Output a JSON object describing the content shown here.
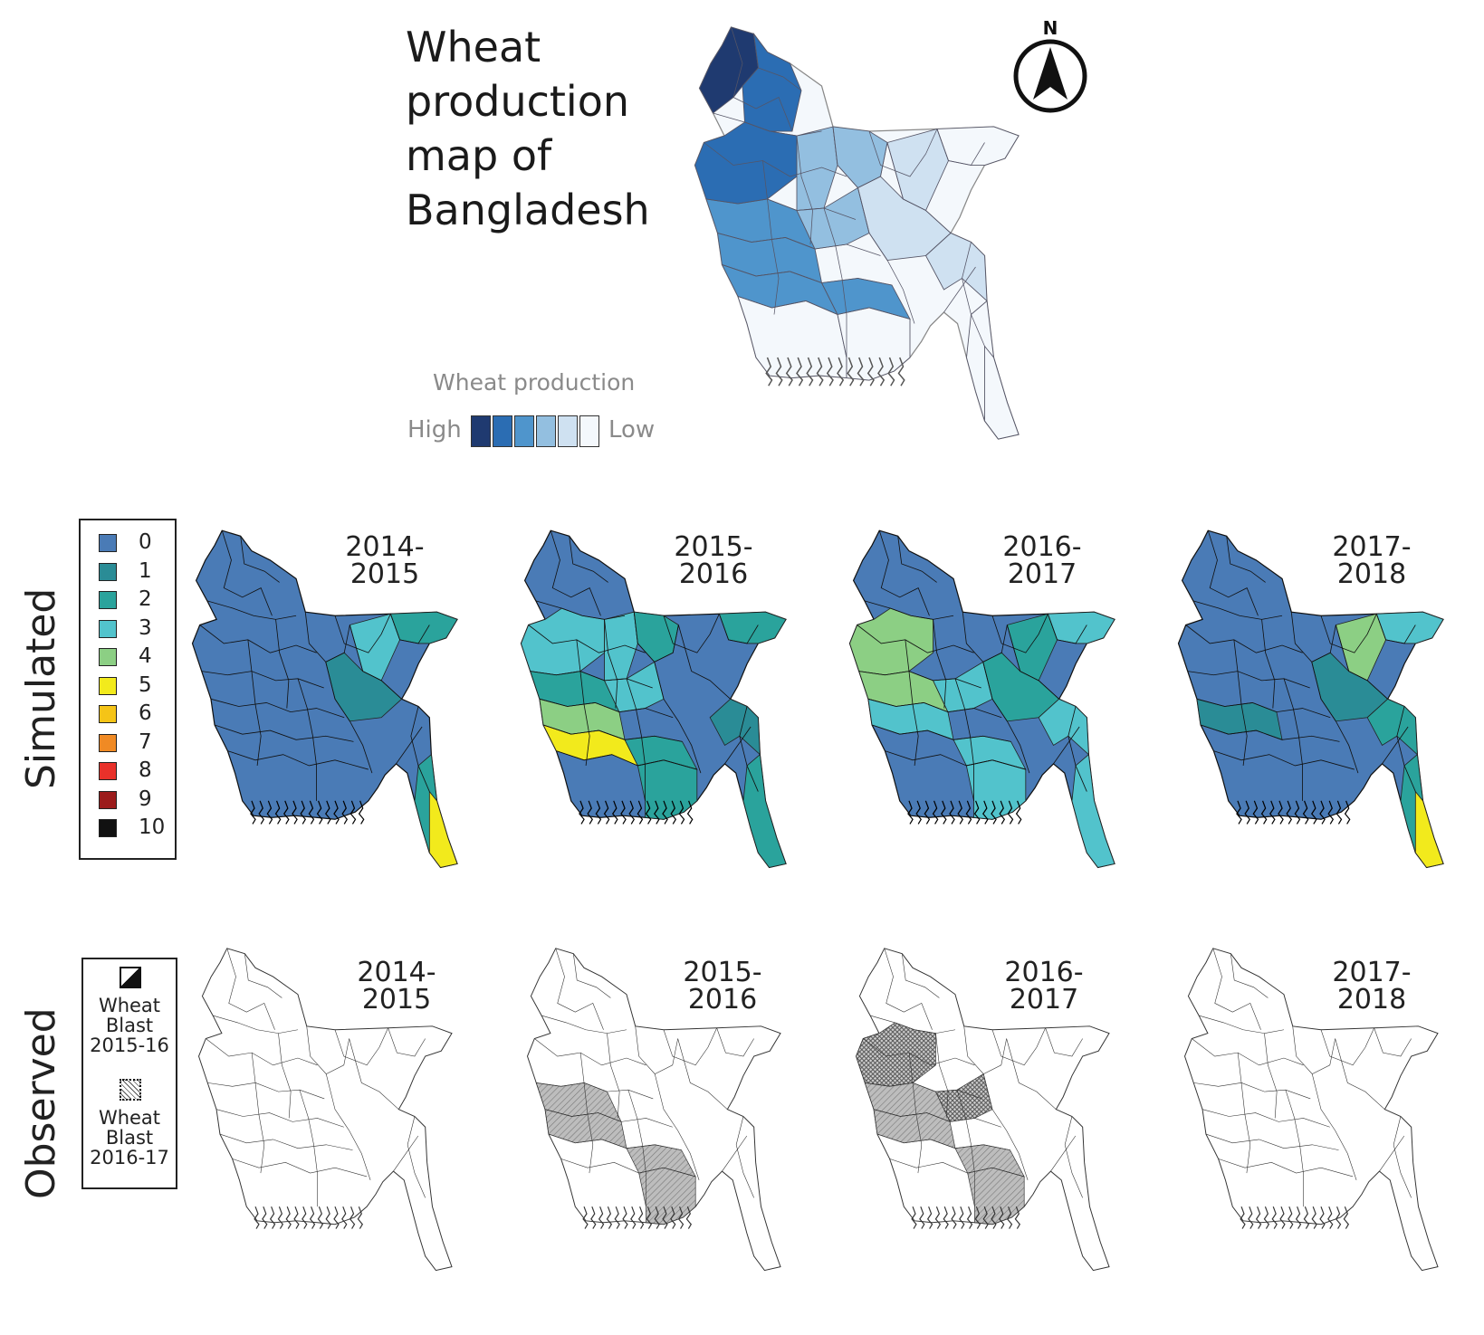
{
  "title_lines": [
    "Wheat",
    "production",
    "map of",
    "Bangladesh"
  ],
  "north_label": "N",
  "production_legend": {
    "title": "Wheat production",
    "high_label": "High",
    "low_label": "Low",
    "colors": [
      "#1f3a70",
      "#2b6db3",
      "#4f95cc",
      "#93bfe0",
      "#cfe1f1",
      "#f4f8fc"
    ]
  },
  "row_labels": {
    "simulated": "Simulated",
    "observed": "Observed"
  },
  "simulated_legend": [
    {
      "label": "0",
      "color": "#4a7bb6"
    },
    {
      "label": "1",
      "color": "#2a8c96"
    },
    {
      "label": "2",
      "color": "#2aa39c"
    },
    {
      "label": "3",
      "color": "#52c3cc"
    },
    {
      "label": "4",
      "color": "#8ccf84"
    },
    {
      "label": "5",
      "color": "#f2ea1c"
    },
    {
      "label": "6",
      "color": "#f5c417"
    },
    {
      "label": "7",
      "color": "#f08a24"
    },
    {
      "label": "8",
      "color": "#e8312a"
    },
    {
      "label": "9",
      "color": "#9c1c1c"
    },
    {
      "label": "10",
      "color": "#111111"
    }
  ],
  "observed_legend": [
    {
      "text": "Wheat\nBlast\n2015-16",
      "pattern": "diagonal-hatch"
    },
    {
      "text": "Wheat\nBlast\n2016-17",
      "pattern": "cross-hatch"
    }
  ],
  "seasons": [
    "2014-\n2015",
    "2015-\n2016",
    "2016-\n2017",
    "2017-\n2018"
  ],
  "observed_seasons": [
    "2014-\n2015",
    "2015-\n2016",
    "2016-\n2017",
    "2017-\n2018"
  ]
}
